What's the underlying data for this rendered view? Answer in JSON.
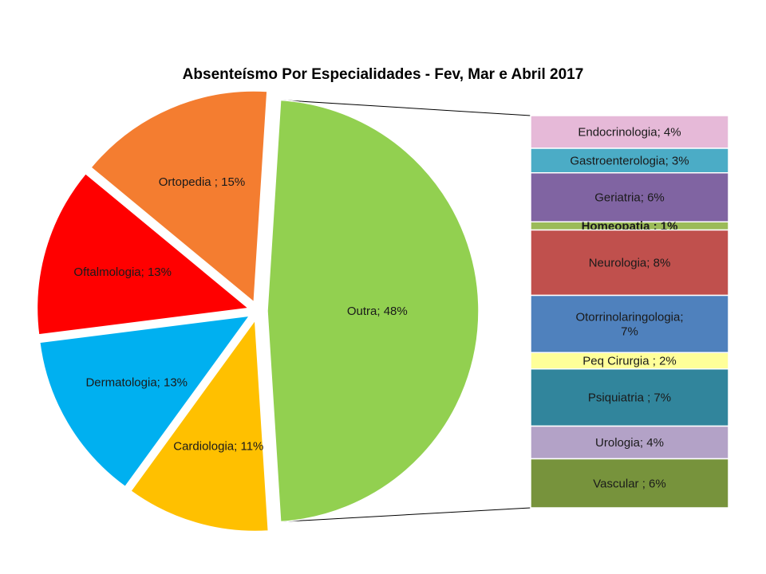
{
  "chart_data": {
    "type": "pie",
    "subtype": "pie-of-pie (bar of pie)",
    "title": "Absenteísmo  Por Especialidades - Fev, Mar e Abril 2017",
    "slices": [
      {
        "label": "Outra; 48%",
        "name": "Outra",
        "value": 48,
        "color": "#92d050"
      },
      {
        "label": "Cardiologia; 11%",
        "name": "Cardiologia",
        "value": 11,
        "color": "#ffc000"
      },
      {
        "label": "Dermatologia; 13%",
        "name": "Dermatologia",
        "value": 13,
        "color": "#00b0f0"
      },
      {
        "label": "Oftalmologia; 13%",
        "name": "Oftalmologia",
        "value": 13,
        "color": "#ff0000"
      },
      {
        "label": "Ortopedia ; 15%",
        "name": "Ortopedia",
        "value": 15,
        "color": "#f47d30"
      }
    ],
    "breakdown_of": "Outra",
    "breakdown": [
      {
        "label": "Endocrinologia; 4%",
        "name": "Endocrinologia",
        "value": 4,
        "color": "#e6b9d8"
      },
      {
        "label": "Gastroenterologia; 3%",
        "name": "Gastroenterologia",
        "value": 3,
        "color": "#4bacc6"
      },
      {
        "label": "Geriatria; 6%",
        "name": "Geriatria",
        "value": 6,
        "color": "#8064a2"
      },
      {
        "label": "Homeopatia ; 1%",
        "name": "Homeopatia",
        "value": 1,
        "color": "#9bbb59"
      },
      {
        "label": "Neurologia; 8%",
        "name": "Neurologia",
        "value": 8,
        "color": "#c0504d"
      },
      {
        "label": "Otorrinolaringologia; 7%",
        "label_lines": [
          "Otorrinolaringologia;",
          "7%"
        ],
        "name": "Otorrinolaringologia",
        "value": 7,
        "color": "#4f81bd"
      },
      {
        "label": "Peq Cirurgia ; 2%",
        "name": "Peq Cirurgia",
        "value": 2,
        "color": "#ffff99"
      },
      {
        "label": "Psiquiatria ; 7%",
        "name": "Psiquiatria",
        "value": 7,
        "color": "#31859c"
      },
      {
        "label": "Urologia; 4%",
        "name": "Urologia",
        "value": 4,
        "color": "#b3a2c7"
      },
      {
        "label": "Vascular ; 6%",
        "name": "Vascular",
        "value": 6,
        "color": "#77933c"
      }
    ],
    "legend": "none"
  }
}
